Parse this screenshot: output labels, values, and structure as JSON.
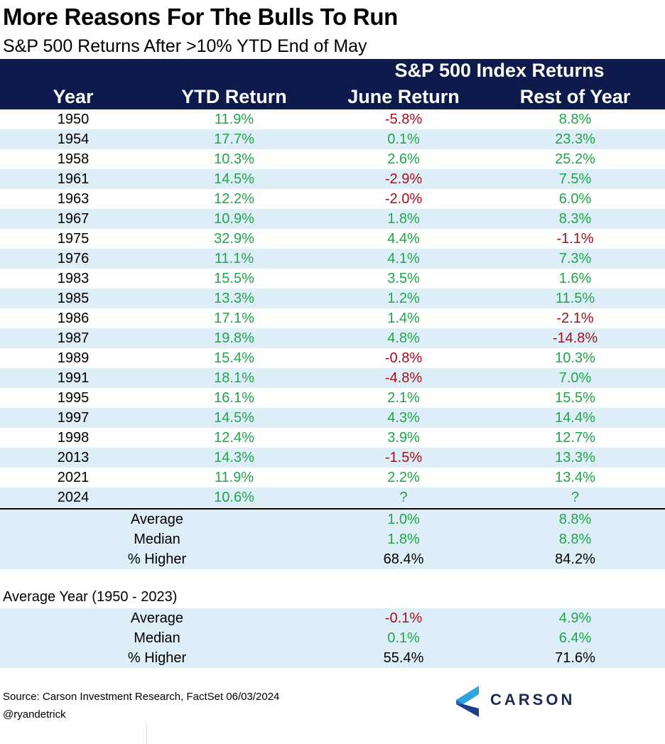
{
  "title": "More Reasons For The Bulls To Run",
  "subtitle": "S&P 500 Returns After >10% YTD End of May",
  "colors": {
    "header_bg": "#0d1a4b",
    "positive": "#1fa64a",
    "negative": "#a3101a",
    "shaded_row": "#ddeef8"
  },
  "chart_data": {
    "type": "table",
    "group_header": "S&P 500 Index Returns",
    "columns": [
      "Year",
      "YTD Return",
      "June Return",
      "Rest of Year"
    ],
    "rows": [
      {
        "year": "1950",
        "ytd": "11.9%",
        "june": "-5.8%",
        "rest": "8.8%"
      },
      {
        "year": "1954",
        "ytd": "17.7%",
        "june": "0.1%",
        "rest": "23.3%"
      },
      {
        "year": "1958",
        "ytd": "10.3%",
        "june": "2.6%",
        "rest": "25.2%"
      },
      {
        "year": "1961",
        "ytd": "14.5%",
        "june": "-2.9%",
        "rest": "7.5%"
      },
      {
        "year": "1963",
        "ytd": "12.2%",
        "june": "-2.0%",
        "rest": "6.0%"
      },
      {
        "year": "1967",
        "ytd": "10.9%",
        "june": "1.8%",
        "rest": "8.3%"
      },
      {
        "year": "1975",
        "ytd": "32.9%",
        "june": "4.4%",
        "rest": "-1.1%"
      },
      {
        "year": "1976",
        "ytd": "11.1%",
        "june": "4.1%",
        "rest": "7.3%"
      },
      {
        "year": "1983",
        "ytd": "15.5%",
        "june": "3.5%",
        "rest": "1.6%"
      },
      {
        "year": "1985",
        "ytd": "13.3%",
        "june": "1.2%",
        "rest": "11.5%"
      },
      {
        "year": "1986",
        "ytd": "17.1%",
        "june": "1.4%",
        "rest": "-2.1%"
      },
      {
        "year": "1987",
        "ytd": "19.8%",
        "june": "4.8%",
        "rest": "-14.8%"
      },
      {
        "year": "1989",
        "ytd": "15.4%",
        "june": "-0.8%",
        "rest": "10.3%"
      },
      {
        "year": "1991",
        "ytd": "18.1%",
        "june": "-4.8%",
        "rest": "7.0%"
      },
      {
        "year": "1995",
        "ytd": "16.1%",
        "june": "2.1%",
        "rest": "15.5%"
      },
      {
        "year": "1997",
        "ytd": "14.5%",
        "june": "4.3%",
        "rest": "14.4%"
      },
      {
        "year": "1998",
        "ytd": "12.4%",
        "june": "3.9%",
        "rest": "12.7%"
      },
      {
        "year": "2013",
        "ytd": "14.3%",
        "june": "-1.5%",
        "rest": "13.3%"
      },
      {
        "year": "2021",
        "ytd": "11.9%",
        "june": "2.2%",
        "rest": "13.4%"
      },
      {
        "year": "2024",
        "ytd": "10.6%",
        "june": "?",
        "rest": "?"
      }
    ],
    "summary": [
      {
        "label": "Average",
        "june": "1.0%",
        "rest": "8.8%"
      },
      {
        "label": "Median",
        "june": "1.8%",
        "rest": "8.8%"
      },
      {
        "label": "% Higher",
        "june": "68.4%",
        "rest": "84.2%"
      }
    ],
    "average_year_title": "Average Year (1950 - 2023)",
    "average_year": [
      {
        "label": "Average",
        "june": "-0.1%",
        "rest": "4.9%"
      },
      {
        "label": "Median",
        "june": "0.1%",
        "rest": "6.4%"
      },
      {
        "label": "% Higher",
        "june": "55.4%",
        "rest": "71.6%"
      }
    ]
  },
  "footer": {
    "source": "Source: Carson Investment Research, FactSet 06/03/2024",
    "handle": "@ryandetrick",
    "logo_text": "CARSON",
    "logo_icon": "carson-chevron-icon"
  }
}
